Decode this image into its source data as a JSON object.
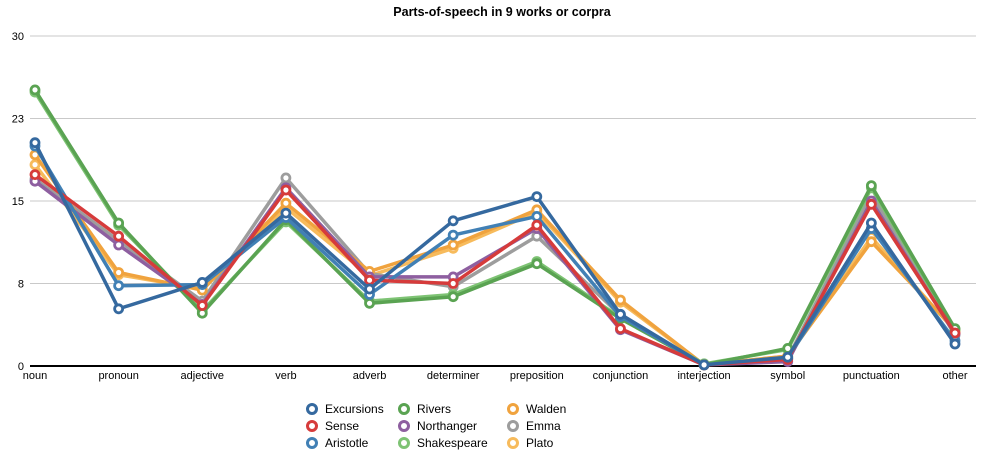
{
  "title": "Parts-of-speech in 9 works or corpra",
  "colors": {
    "grid": "#c9c9c9",
    "axis": "#000000",
    "background": "#ffffff"
  },
  "chart_data": {
    "type": "line",
    "title": "Parts-of-speech in 9 works or corpra",
    "xlabel": "",
    "ylabel": "",
    "ylim": [
      0,
      30
    ],
    "grid": true,
    "legend_position": "bottom",
    "marker": "open-circle",
    "y_ticks": [
      {
        "label": "0",
        "value": 0
      },
      {
        "label": "8",
        "value": 7.5
      },
      {
        "label": "15",
        "value": 15
      },
      {
        "label": "23",
        "value": 22.5
      },
      {
        "label": "30",
        "value": 30
      }
    ],
    "categories": [
      "noun",
      "pronoun",
      "adjective",
      "verb",
      "adverb",
      "determiner",
      "preposition",
      "conjunction",
      "interjection",
      "symbol",
      "punctuation",
      "other"
    ],
    "series": [
      {
        "name": "Excursions",
        "color": "#35699f",
        "values": [
          20.3,
          5.2,
          7.6,
          13.9,
          7.0,
          13.2,
          15.4,
          4.7,
          0.1,
          0.8,
          13.0,
          2.0
        ]
      },
      {
        "name": "Sense",
        "color": "#d63b3b",
        "values": [
          17.4,
          11.8,
          5.5,
          16.0,
          7.8,
          7.5,
          12.8,
          3.4,
          0.1,
          0.6,
          14.7,
          3.0
        ]
      },
      {
        "name": "Aristotle",
        "color": "#4180b5",
        "values": [
          20.0,
          7.3,
          7.4,
          13.5,
          6.5,
          11.9,
          13.6,
          4.5,
          0.1,
          0.7,
          12.5,
          2.3
        ]
      },
      {
        "name": "Rivers",
        "color": "#5aa352",
        "values": [
          25.1,
          13.0,
          4.8,
          13.3,
          5.7,
          6.3,
          9.3,
          4.3,
          0.1,
          1.6,
          16.4,
          3.4
        ]
      },
      {
        "name": "Northanger",
        "color": "#8e5fa0",
        "values": [
          16.8,
          11.0,
          5.6,
          16.2,
          8.1,
          8.1,
          12.5,
          3.3,
          0.1,
          0.4,
          15.0,
          2.9
        ]
      },
      {
        "name": "Shakespeare",
        "color": "#7ec374",
        "values": [
          24.9,
          12.8,
          5.0,
          13.1,
          5.9,
          6.5,
          9.5,
          4.4,
          0.2,
          1.5,
          16.2,
          3.3
        ]
      },
      {
        "name": "Walden",
        "color": "#f0a33e",
        "values": [
          19.2,
          8.5,
          6.9,
          14.8,
          8.6,
          11.0,
          14.2,
          6.0,
          0.1,
          0.9,
          11.3,
          3.3
        ]
      },
      {
        "name": "Emma",
        "color": "#9d9d9d",
        "values": [
          17.0,
          11.4,
          5.9,
          17.1,
          8.4,
          7.2,
          11.8,
          4.6,
          0.1,
          0.7,
          15.6,
          2.8
        ]
      },
      {
        "name": "Plato",
        "color": "#f7bb5c",
        "values": [
          18.3,
          8.3,
          7.0,
          14.4,
          8.2,
          10.7,
          14.0,
          5.8,
          0.1,
          0.9,
          11.7,
          3.2
        ]
      }
    ]
  },
  "legend": {
    "columns": [
      [
        "Excursions",
        "Sense",
        "Aristotle"
      ],
      [
        "Rivers",
        "Northanger",
        "Shakespeare"
      ],
      [
        "Walden",
        "Emma",
        "Plato"
      ]
    ]
  }
}
